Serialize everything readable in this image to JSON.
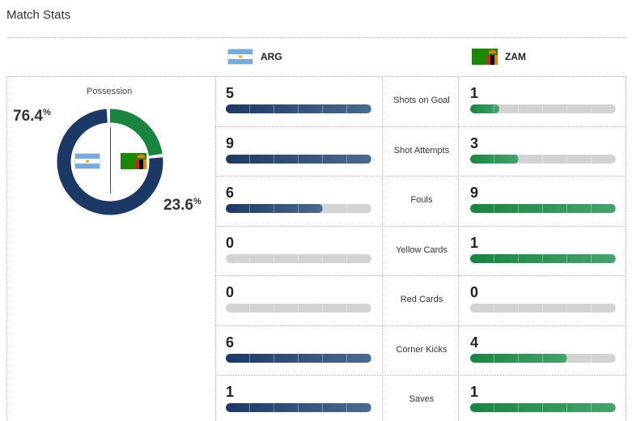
{
  "title": "Match Stats",
  "teams": {
    "home": {
      "abbr": "ARG",
      "color": "#1c3966",
      "flag": "argentina-flag"
    },
    "away": {
      "abbr": "ZAM",
      "color": "#178540",
      "flag": "zambia-flag"
    }
  },
  "possession": {
    "label": "Possession",
    "home_value": "76.4",
    "away_value": "23.6",
    "unit": "%",
    "home_share": 0.764,
    "away_share": 0.236
  },
  "stats": [
    {
      "label": "Shots on Goal",
      "home": "5",
      "away": "1",
      "home_fill": 1.0,
      "away_fill": 0.2
    },
    {
      "label": "Shot Attempts",
      "home": "9",
      "away": "3",
      "home_fill": 1.0,
      "away_fill": 0.333
    },
    {
      "label": "Fouls",
      "home": "6",
      "away": "9",
      "home_fill": 0.667,
      "away_fill": 1.0
    },
    {
      "label": "Yellow Cards",
      "home": "0",
      "away": "1",
      "home_fill": 0.0,
      "away_fill": 1.0
    },
    {
      "label": "Red Cards",
      "home": "0",
      "away": "0",
      "home_fill": 0.0,
      "away_fill": 0.0
    },
    {
      "label": "Corner Kicks",
      "home": "6",
      "away": "4",
      "home_fill": 1.0,
      "away_fill": 0.667
    },
    {
      "label": "Saves",
      "home": "1",
      "away": "1",
      "home_fill": 1.0,
      "away_fill": 1.0
    }
  ]
}
